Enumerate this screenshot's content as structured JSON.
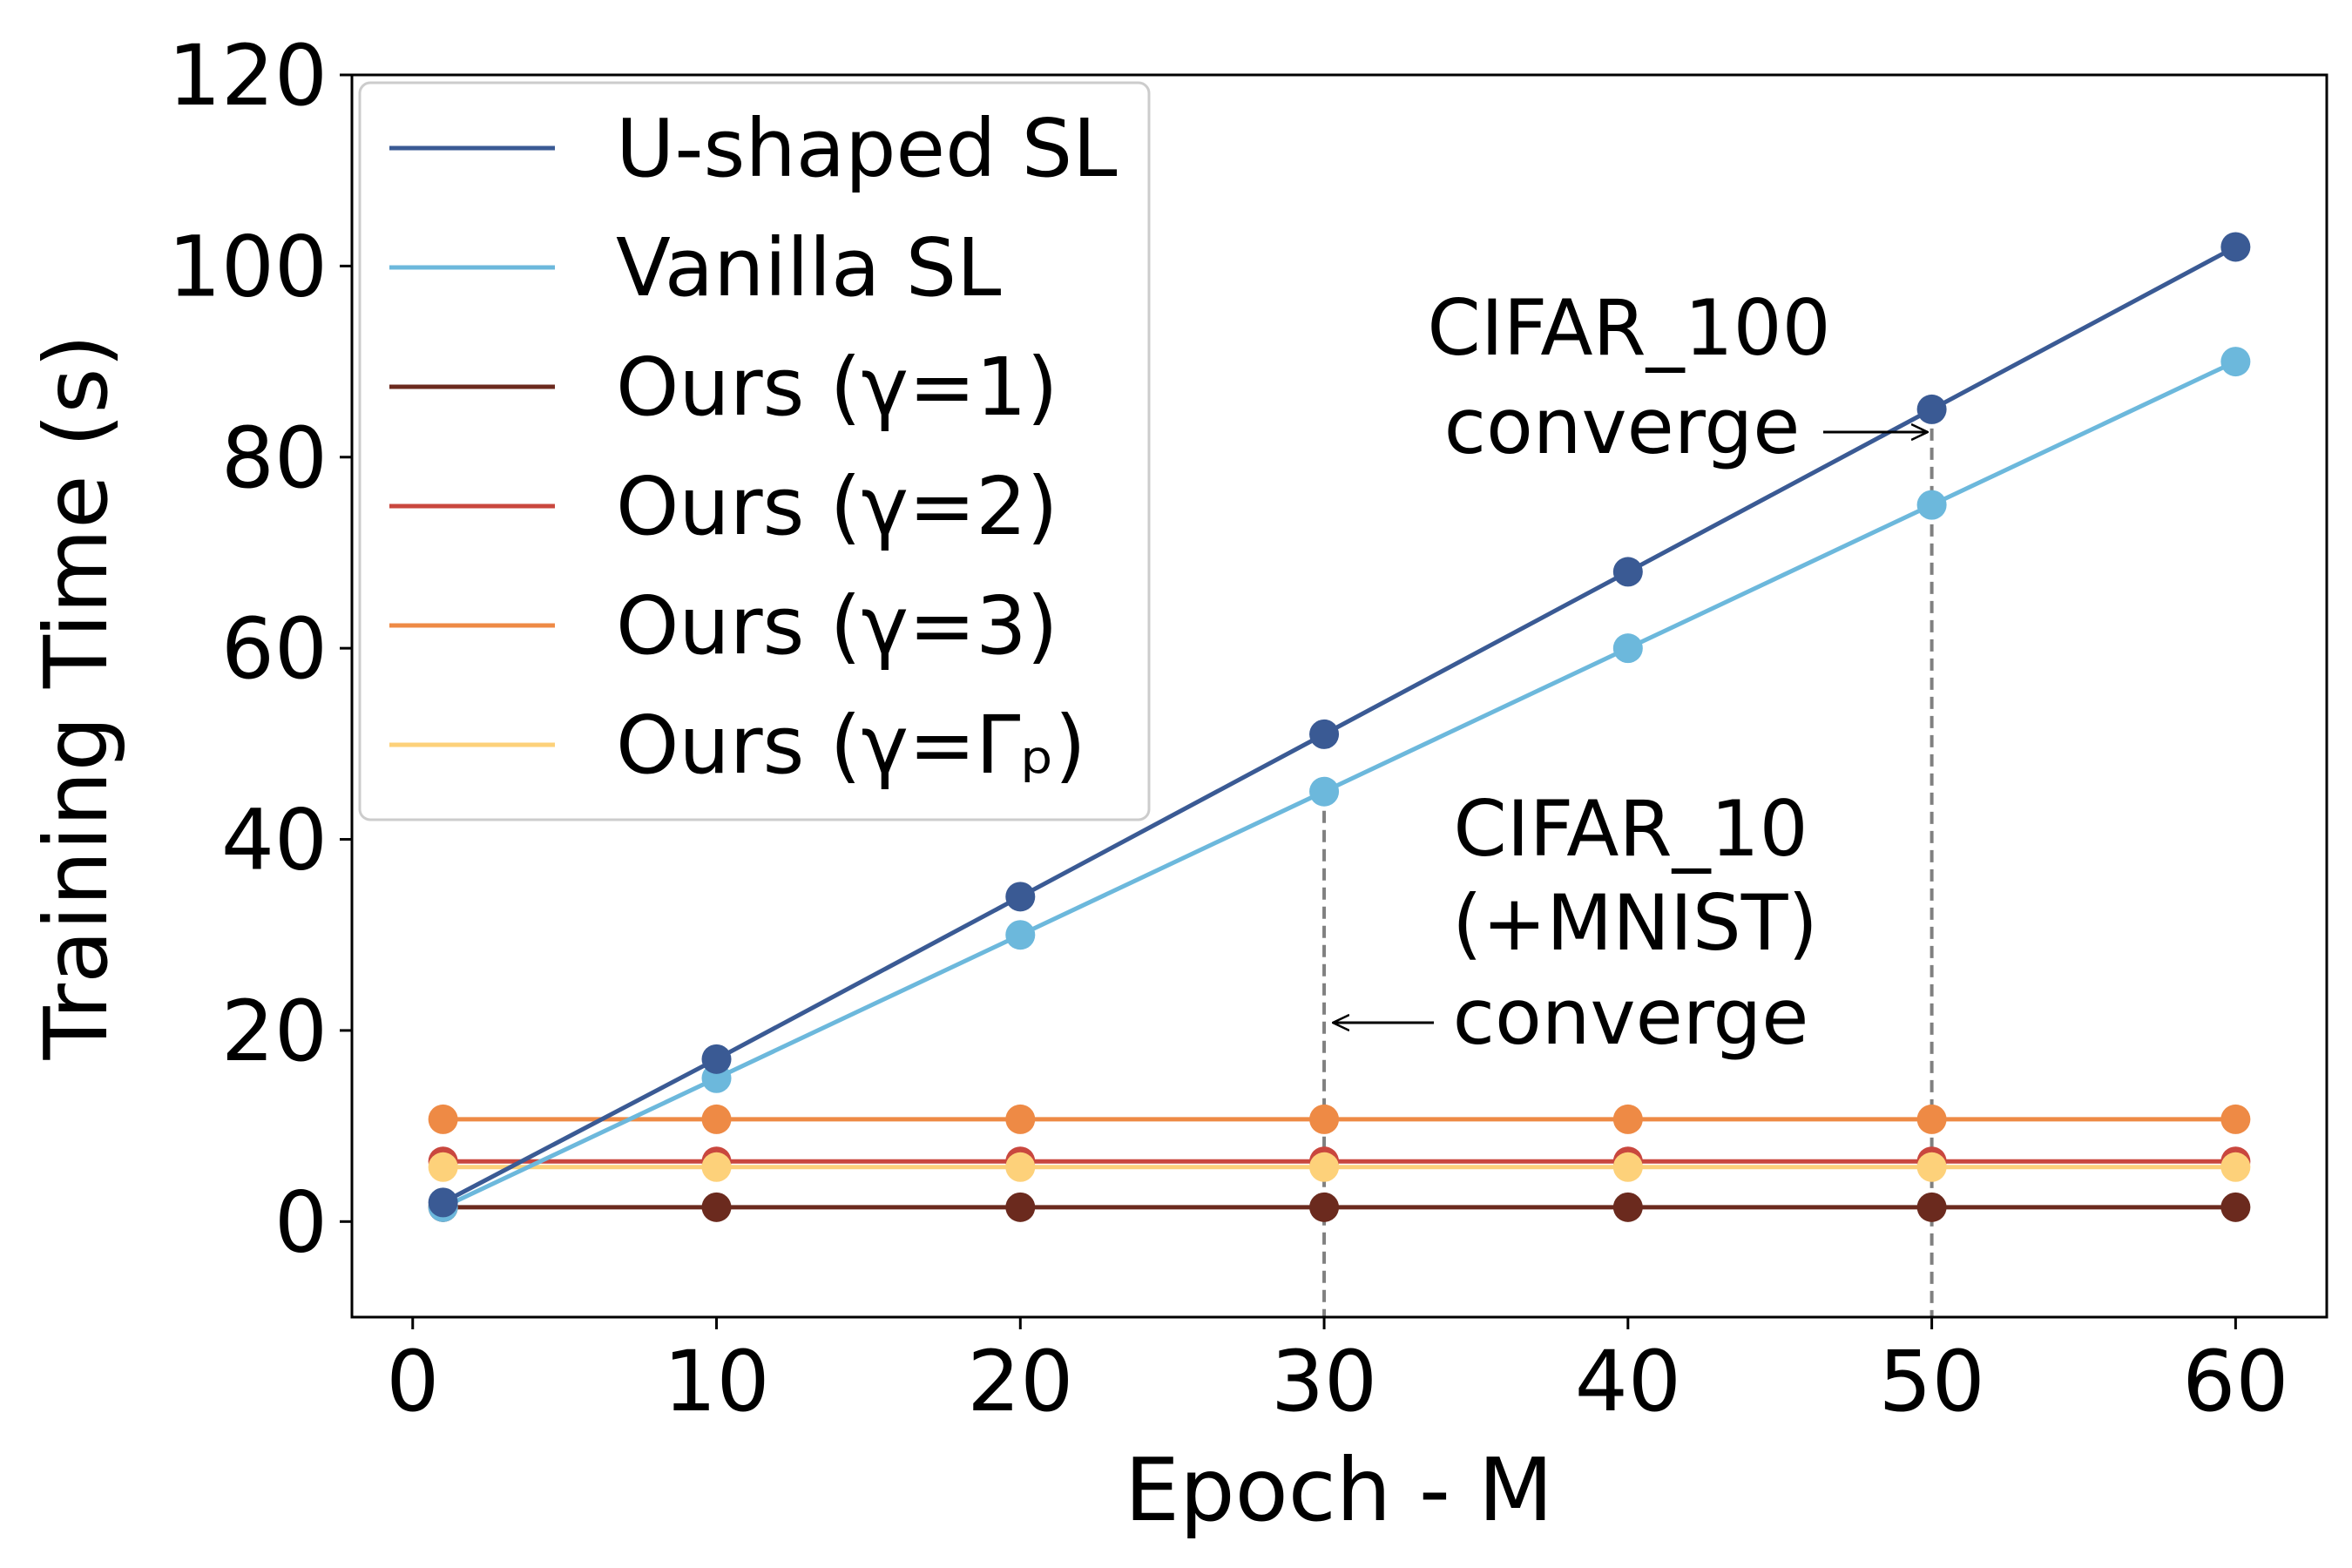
{
  "chart_data": {
    "type": "line",
    "title": "",
    "xlabel": "Epoch - M",
    "ylabel": "Training Time (s)",
    "xlim": [
      -2,
      63
    ],
    "ylim": [
      -10,
      120
    ],
    "xticks": [
      0,
      10,
      20,
      30,
      40,
      50,
      60
    ],
    "yticks": [
      0,
      20,
      40,
      60,
      80,
      100,
      120
    ],
    "x": [
      1,
      10,
      20,
      30,
      40,
      50,
      60
    ],
    "grid": false,
    "legend_position": "top-left",
    "series": [
      {
        "name": "U-shaped SL",
        "color": "#3a5a94",
        "values": [
          2,
          17,
          34,
          51,
          68,
          85,
          102
        ]
      },
      {
        "name": "Vanilla SL",
        "color": "#6cb8dc",
        "values": [
          1.5,
          15,
          30,
          45,
          60,
          75,
          90
        ]
      },
      {
        "name": "Ours (γ=1)",
        "color": "#6b2a1e",
        "values": [
          1.5,
          1.5,
          1.5,
          1.5,
          1.5,
          1.5,
          1.5
        ]
      },
      {
        "name": "Ours (γ=2)",
        "color": "#c9473e",
        "values": [
          6.3,
          6.3,
          6.3,
          6.3,
          6.3,
          6.3,
          6.3
        ]
      },
      {
        "name": "Ours (γ=3)",
        "color": "#ee8a45",
        "values": [
          10.7,
          10.7,
          10.7,
          10.7,
          10.7,
          10.7,
          10.7
        ]
      },
      {
        "name": "Ours (γ=Γₚ)",
        "color": "#fdd17a",
        "values": [
          5.7,
          5.7,
          5.7,
          5.7,
          5.7,
          5.7,
          5.7
        ]
      }
    ],
    "annotations": [
      {
        "id": "cifar100",
        "lines": [
          "CIFAR_100",
          "converge"
        ],
        "x_line": 50,
        "arrow_to": [
          50,
          85
        ]
      },
      {
        "id": "cifar10",
        "lines": [
          "CIFAR_10",
          "(+MNIST)",
          "converge"
        ],
        "x_line": 30,
        "arrow_to": [
          30,
          21
        ]
      }
    ]
  }
}
